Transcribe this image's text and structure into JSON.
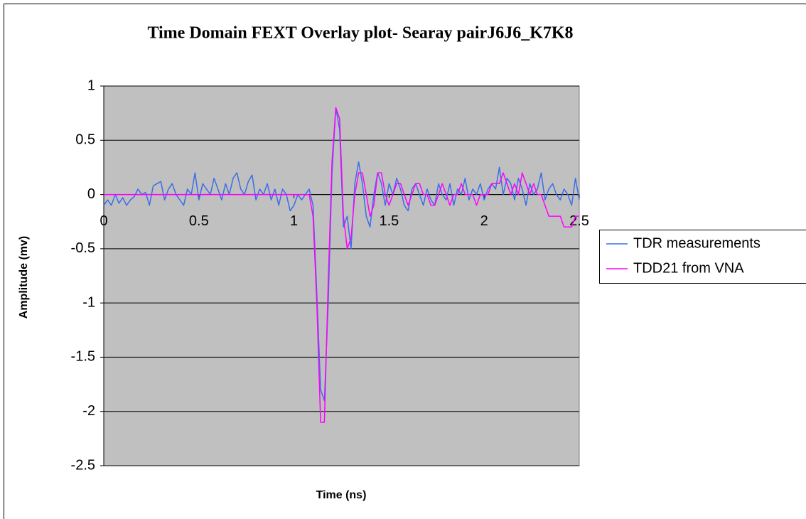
{
  "chart_data": {
    "type": "line",
    "title": "Time Domain FEXT Overlay plot- Searay pairJ6J6_K7K8",
    "x_label": "Time (ns)",
    "y_label": "Amplitude (mv)",
    "x": [
      0,
      0.02,
      0.04,
      0.06,
      0.08,
      0.1,
      0.12,
      0.14,
      0.16,
      0.18,
      0.2,
      0.22,
      0.24,
      0.26,
      0.28,
      0.3,
      0.32,
      0.34,
      0.36,
      0.38,
      0.4,
      0.42,
      0.44,
      0.46,
      0.48,
      0.5,
      0.52,
      0.54,
      0.56,
      0.58,
      0.6,
      0.62,
      0.64,
      0.66,
      0.68,
      0.7,
      0.72,
      0.74,
      0.76,
      0.78,
      0.8,
      0.82,
      0.84,
      0.86,
      0.88,
      0.9,
      0.92,
      0.94,
      0.96,
      0.98,
      1,
      1.02,
      1.04,
      1.06,
      1.08,
      1.1,
      1.12,
      1.14,
      1.16,
      1.18,
      1.2,
      1.22,
      1.24,
      1.26,
      1.28,
      1.3,
      1.32,
      1.34,
      1.36,
      1.38,
      1.4,
      1.42,
      1.44,
      1.46,
      1.48,
      1.5,
      1.52,
      1.54,
      1.56,
      1.58,
      1.6,
      1.62,
      1.64,
      1.66,
      1.68,
      1.7,
      1.72,
      1.74,
      1.76,
      1.78,
      1.8,
      1.82,
      1.84,
      1.86,
      1.88,
      1.9,
      1.92,
      1.94,
      1.96,
      1.98,
      2,
      2.02,
      2.04,
      2.06,
      2.08,
      2.1,
      2.12,
      2.14,
      2.16,
      2.18,
      2.2,
      2.22,
      2.24,
      2.26,
      2.28,
      2.3,
      2.32,
      2.34,
      2.36,
      2.38,
      2.4,
      2.42,
      2.44,
      2.46,
      2.48,
      2.5
    ],
    "series": [
      {
        "name": "TDR measurements",
        "color": "#3a6ee8",
        "values": [
          -0.1,
          -0.05,
          -0.1,
          0.0,
          -0.08,
          -0.03,
          -0.1,
          -0.05,
          -0.02,
          0.05,
          0.0,
          0.02,
          -0.1,
          0.08,
          0.1,
          0.12,
          -0.05,
          0.05,
          0.1,
          0.0,
          -0.05,
          -0.1,
          0.05,
          0.0,
          0.2,
          -0.05,
          0.1,
          0.05,
          0.0,
          0.15,
          0.05,
          -0.05,
          0.1,
          0.0,
          0.15,
          0.2,
          0.05,
          0.0,
          0.12,
          0.18,
          -0.05,
          0.05,
          0.0,
          0.1,
          -0.05,
          0.05,
          -0.1,
          0.05,
          0.0,
          -0.15,
          -0.1,
          0.0,
          -0.05,
          0.0,
          0.05,
          -0.1,
          -0.9,
          -1.8,
          -1.9,
          -1.0,
          0.2,
          0.8,
          0.6,
          -0.3,
          -0.2,
          -0.5,
          0.1,
          0.3,
          0.1,
          -0.2,
          -0.3,
          0.0,
          0.2,
          0.1,
          -0.1,
          0.1,
          0.0,
          0.15,
          0.05,
          -0.1,
          -0.15,
          0.05,
          0.1,
          0.0,
          -0.1,
          0.05,
          -0.05,
          -0.1,
          0.1,
          0.0,
          -0.05,
          0.1,
          -0.1,
          0.05,
          0.0,
          0.15,
          -0.05,
          0.05,
          0.0,
          0.1,
          -0.05,
          0.05,
          0.1,
          0.05,
          0.25,
          0.0,
          0.15,
          0.1,
          -0.05,
          0.15,
          0.05,
          -0.1,
          0.1,
          0.0,
          0.05,
          0.2,
          -0.05,
          0.05,
          0.1,
          0.0,
          -0.05,
          0.05,
          0.0,
          -0.1,
          0.15,
          -0.05
        ]
      },
      {
        "name": "TDD21 from VNA",
        "color": "#ff00ff",
        "values": [
          0,
          0,
          0,
          0,
          0,
          0,
          0,
          0,
          0,
          0,
          0,
          0,
          0,
          0,
          0,
          0,
          0,
          0,
          0,
          0,
          0,
          0,
          0,
          0,
          0,
          0,
          0,
          0,
          0,
          0,
          0,
          0,
          0,
          0,
          0,
          0,
          0,
          0,
          0,
          0,
          0,
          0,
          0,
          0,
          0,
          0,
          0,
          0,
          0,
          0,
          0,
          0,
          0,
          0,
          0,
          -0.2,
          -1.0,
          -2.1,
          -2.1,
          -0.8,
          0.3,
          0.8,
          0.7,
          -0.2,
          -0.5,
          -0.4,
          0.0,
          0.2,
          0.2,
          0.0,
          -0.2,
          -0.1,
          0.2,
          0.2,
          0.0,
          -0.1,
          0,
          0.1,
          0.1,
          0,
          -0.1,
          0,
          0.1,
          0.1,
          0,
          0,
          -0.1,
          -0.1,
          0,
          0.1,
          0,
          -0.1,
          0,
          0,
          0.1,
          0,
          0,
          0,
          -0.1,
          0,
          0,
          0,
          0.1,
          0.1,
          0.1,
          0.2,
          0.1,
          0,
          0.1,
          0,
          0.2,
          0.1,
          0,
          0.1,
          0,
          0,
          -0.1,
          -0.2,
          -0.2,
          -0.2,
          -0.2,
          -0.3,
          -0.3,
          -0.3,
          -0.2,
          -0.2
        ]
      }
    ],
    "xlim": [
      0,
      2.5
    ],
    "ylim": [
      -2.5,
      1
    ],
    "xticks": [
      0,
      0.5,
      1,
      1.5,
      2,
      2.5
    ],
    "yticks": [
      1,
      0.5,
      0,
      -0.5,
      -1,
      -1.5,
      -2,
      -2.5
    ],
    "grid": true,
    "legend": "right"
  }
}
